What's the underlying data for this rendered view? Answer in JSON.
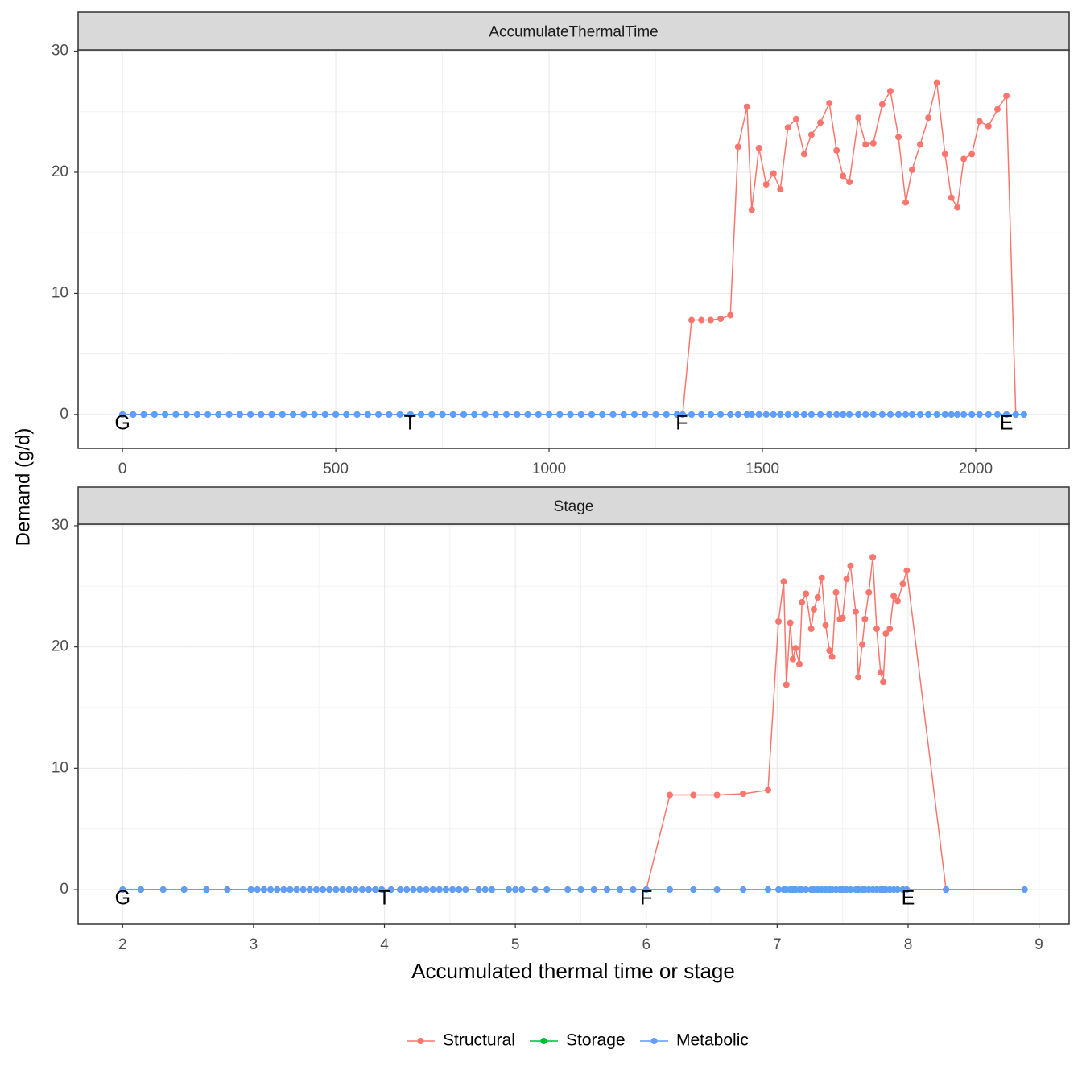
{
  "chart_data": [
    {
      "type": "line",
      "title": "AccumulateThermalTime",
      "ylabel": "Demand (g/d)",
      "x": [
        0,
        25,
        50,
        75,
        100,
        125,
        150,
        175,
        200,
        225,
        250,
        275,
        300,
        325,
        350,
        375,
        400,
        425,
        450,
        475,
        500,
        525,
        550,
        575,
        600,
        625,
        650,
        675,
        700,
        725,
        750,
        775,
        800,
        825,
        850,
        875,
        900,
        925,
        950,
        975,
        1000,
        1025,
        1050,
        1075,
        1100,
        1125,
        1150,
        1175,
        1200,
        1225,
        1250,
        1275,
        1300,
        1313,
        1334,
        1357,
        1379,
        1402,
        1425,
        1443,
        1464,
        1475,
        1492,
        1509,
        1526,
        1542,
        1560,
        1579,
        1598,
        1615,
        1636,
        1657,
        1674,
        1689,
        1704,
        1725,
        1742,
        1760,
        1781,
        1800,
        1819,
        1836,
        1851,
        1870,
        1889,
        1909,
        1928,
        1943,
        1957,
        1972,
        1991,
        2009,
        2030,
        2051,
        2072,
        2094,
        2113
      ],
      "series": [
        {
          "name": "Structural",
          "color": "#F8766D",
          "values": [
            0,
            0,
            0,
            0,
            0,
            0,
            0,
            0,
            0,
            0,
            0,
            0,
            0,
            0,
            0,
            0,
            0,
            0,
            0,
            0,
            0,
            0,
            0,
            0,
            0,
            0,
            0,
            0,
            0,
            0,
            0,
            0,
            0,
            0,
            0,
            0,
            0,
            0,
            0,
            0,
            0,
            0,
            0,
            0,
            0,
            0,
            0,
            0,
            0,
            0,
            0,
            0,
            0,
            0,
            7.8,
            7.8,
            7.8,
            7.9,
            8.2,
            22.1,
            25.4,
            16.9,
            22.0,
            19.0,
            19.9,
            18.6,
            23.7,
            24.4,
            21.5,
            23.1,
            24.1,
            25.7,
            21.8,
            19.7,
            19.2,
            24.5,
            22.3,
            22.4,
            25.6,
            26.7,
            22.9,
            17.5,
            20.2,
            22.3,
            24.5,
            27.4,
            21.5,
            17.9,
            17.1,
            21.1,
            21.5,
            24.2,
            23.8,
            25.2,
            26.3,
            0,
            0
          ]
        },
        {
          "name": "Storage",
          "color": "#00BA38",
          "values": [
            0,
            0,
            0,
            0,
            0,
            0,
            0,
            0,
            0,
            0,
            0,
            0,
            0,
            0,
            0,
            0,
            0,
            0,
            0,
            0,
            0,
            0,
            0,
            0,
            0,
            0,
            0,
            0,
            0,
            0,
            0,
            0,
            0,
            0,
            0,
            0,
            0,
            0,
            0,
            0,
            0,
            0,
            0,
            0,
            0,
            0,
            0,
            0,
            0,
            0,
            0,
            0,
            0,
            0,
            0,
            0,
            0,
            0,
            0,
            0,
            0,
            0,
            0,
            0,
            0,
            0,
            0,
            0,
            0,
            0,
            0,
            0,
            0,
            0,
            0,
            0,
            0,
            0,
            0,
            0,
            0,
            0,
            0,
            0,
            0,
            0,
            0,
            0,
            0,
            0,
            0,
            0,
            0,
            0,
            0,
            0,
            0
          ]
        },
        {
          "name": "Metabolic",
          "color": "#619CFF",
          "values": [
            0,
            0,
            0,
            0,
            0,
            0,
            0,
            0,
            0,
            0,
            0,
            0,
            0,
            0,
            0,
            0,
            0,
            0,
            0,
            0,
            0,
            0,
            0,
            0,
            0,
            0,
            0,
            0,
            0,
            0,
            0,
            0,
            0,
            0,
            0,
            0,
            0,
            0,
            0,
            0,
            0,
            0,
            0,
            0,
            0,
            0,
            0,
            0,
            0,
            0,
            0,
            0,
            0,
            0,
            0,
            0,
            0,
            0,
            0,
            0,
            0,
            0,
            0,
            0,
            0,
            0,
            0,
            0,
            0,
            0,
            0,
            0,
            0,
            0,
            0,
            0,
            0,
            0,
            0,
            0,
            0,
            0,
            0,
            0,
            0,
            0,
            0,
            0,
            0,
            0,
            0,
            0,
            0,
            0,
            0,
            0,
            0
          ]
        }
      ],
      "annotations": [
        {
          "text": "G",
          "x": 0,
          "y": -0.8
        },
        {
          "text": "T",
          "x": 674,
          "y": -0.8
        },
        {
          "text": "F",
          "x": 1311,
          "y": -0.8
        },
        {
          "text": "E",
          "x": 2072,
          "y": -0.8
        }
      ],
      "xlim": [
        -104,
        2219
      ],
      "ylim": [
        -2.8,
        30.1
      ],
      "xticks": [
        0,
        500,
        1000,
        1500,
        2000
      ],
      "yticks": [
        0,
        10,
        20,
        30
      ],
      "grid": true
    },
    {
      "type": "line",
      "title": "Stage",
      "xlabel": "Accumulated thermal time or stage",
      "x": [
        2,
        2.14,
        2.31,
        2.47,
        2.64,
        2.8,
        2.98,
        3.03,
        3.08,
        3.13,
        3.18,
        3.23,
        3.28,
        3.33,
        3.38,
        3.43,
        3.48,
        3.53,
        3.58,
        3.63,
        3.68,
        3.73,
        3.78,
        3.83,
        3.88,
        3.93,
        3.98,
        4.05,
        4.12,
        4.17,
        4.22,
        4.27,
        4.32,
        4.37,
        4.42,
        4.47,
        4.52,
        4.57,
        4.62,
        4.72,
        4.77,
        4.82,
        4.95,
        5.0,
        5.05,
        5.15,
        5.24,
        5.4,
        5.5,
        5.6,
        5.7,
        5.8,
        5.9,
        6.0,
        6.18,
        6.36,
        6.54,
        6.74,
        6.93,
        7.01,
        7.05,
        7.07,
        7.1,
        7.12,
        7.14,
        7.17,
        7.19,
        7.22,
        7.26,
        7.28,
        7.31,
        7.34,
        7.37,
        7.4,
        7.42,
        7.45,
        7.48,
        7.5,
        7.53,
        7.56,
        7.6,
        7.62,
        7.65,
        7.67,
        7.7,
        7.73,
        7.76,
        7.79,
        7.81,
        7.83,
        7.86,
        7.89,
        7.92,
        7.96,
        7.99,
        8.29,
        8.89
      ],
      "series": [
        {
          "name": "Structural",
          "color": "#F8766D",
          "values": [
            0,
            0,
            0,
            0,
            0,
            0,
            0,
            0,
            0,
            0,
            0,
            0,
            0,
            0,
            0,
            0,
            0,
            0,
            0,
            0,
            0,
            0,
            0,
            0,
            0,
            0,
            0,
            0,
            0,
            0,
            0,
            0,
            0,
            0,
            0,
            0,
            0,
            0,
            0,
            0,
            0,
            0,
            0,
            0,
            0,
            0,
            0,
            0,
            0,
            0,
            0,
            0,
            0,
            0,
            7.8,
            7.8,
            7.8,
            7.9,
            8.2,
            22.1,
            25.4,
            16.9,
            22.0,
            19.0,
            19.9,
            18.6,
            23.7,
            24.4,
            21.5,
            23.1,
            24.1,
            25.7,
            21.8,
            19.7,
            19.2,
            24.5,
            22.3,
            22.4,
            25.6,
            26.7,
            22.9,
            17.5,
            20.2,
            22.3,
            24.5,
            27.4,
            21.5,
            17.9,
            17.1,
            21.1,
            21.5,
            24.2,
            23.8,
            25.2,
            26.3,
            0,
            0
          ]
        },
        {
          "name": "Storage",
          "color": "#00BA38",
          "values": [
            0,
            0,
            0,
            0,
            0,
            0,
            0,
            0,
            0,
            0,
            0,
            0,
            0,
            0,
            0,
            0,
            0,
            0,
            0,
            0,
            0,
            0,
            0,
            0,
            0,
            0,
            0,
            0,
            0,
            0,
            0,
            0,
            0,
            0,
            0,
            0,
            0,
            0,
            0,
            0,
            0,
            0,
            0,
            0,
            0,
            0,
            0,
            0,
            0,
            0,
            0,
            0,
            0,
            0,
            0,
            0,
            0,
            0,
            0,
            0,
            0,
            0,
            0,
            0,
            0,
            0,
            0,
            0,
            0,
            0,
            0,
            0,
            0,
            0,
            0,
            0,
            0,
            0,
            0,
            0,
            0,
            0,
            0,
            0,
            0,
            0,
            0,
            0,
            0,
            0,
            0,
            0,
            0,
            0,
            0,
            0,
            0
          ]
        },
        {
          "name": "Metabolic",
          "color": "#619CFF",
          "values": [
            0,
            0,
            0,
            0,
            0,
            0,
            0,
            0,
            0,
            0,
            0,
            0,
            0,
            0,
            0,
            0,
            0,
            0,
            0,
            0,
            0,
            0,
            0,
            0,
            0,
            0,
            0,
            0,
            0,
            0,
            0,
            0,
            0,
            0,
            0,
            0,
            0,
            0,
            0,
            0,
            0,
            0,
            0,
            0,
            0,
            0,
            0,
            0,
            0,
            0,
            0,
            0,
            0,
            0,
            0,
            0,
            0,
            0,
            0,
            0,
            0,
            0,
            0,
            0,
            0,
            0,
            0,
            0,
            0,
            0,
            0,
            0,
            0,
            0,
            0,
            0,
            0,
            0,
            0,
            0,
            0,
            0,
            0,
            0,
            0,
            0,
            0,
            0,
            0,
            0,
            0,
            0,
            0,
            0,
            0,
            0,
            0
          ]
        }
      ],
      "annotations": [
        {
          "text": "G",
          "x": 2,
          "y": -0.8
        },
        {
          "text": "T",
          "x": 4,
          "y": -0.8
        },
        {
          "text": "F",
          "x": 6,
          "y": -0.8
        },
        {
          "text": "E",
          "x": 8,
          "y": -0.8
        }
      ],
      "xlim": [
        1.66,
        9.23
      ],
      "ylim": [
        -2.85,
        30.13
      ],
      "xticks": [
        2,
        3,
        4,
        5,
        6,
        7,
        8,
        9
      ],
      "yticks": [
        0,
        10,
        20,
        30
      ],
      "grid": true
    }
  ]
}
